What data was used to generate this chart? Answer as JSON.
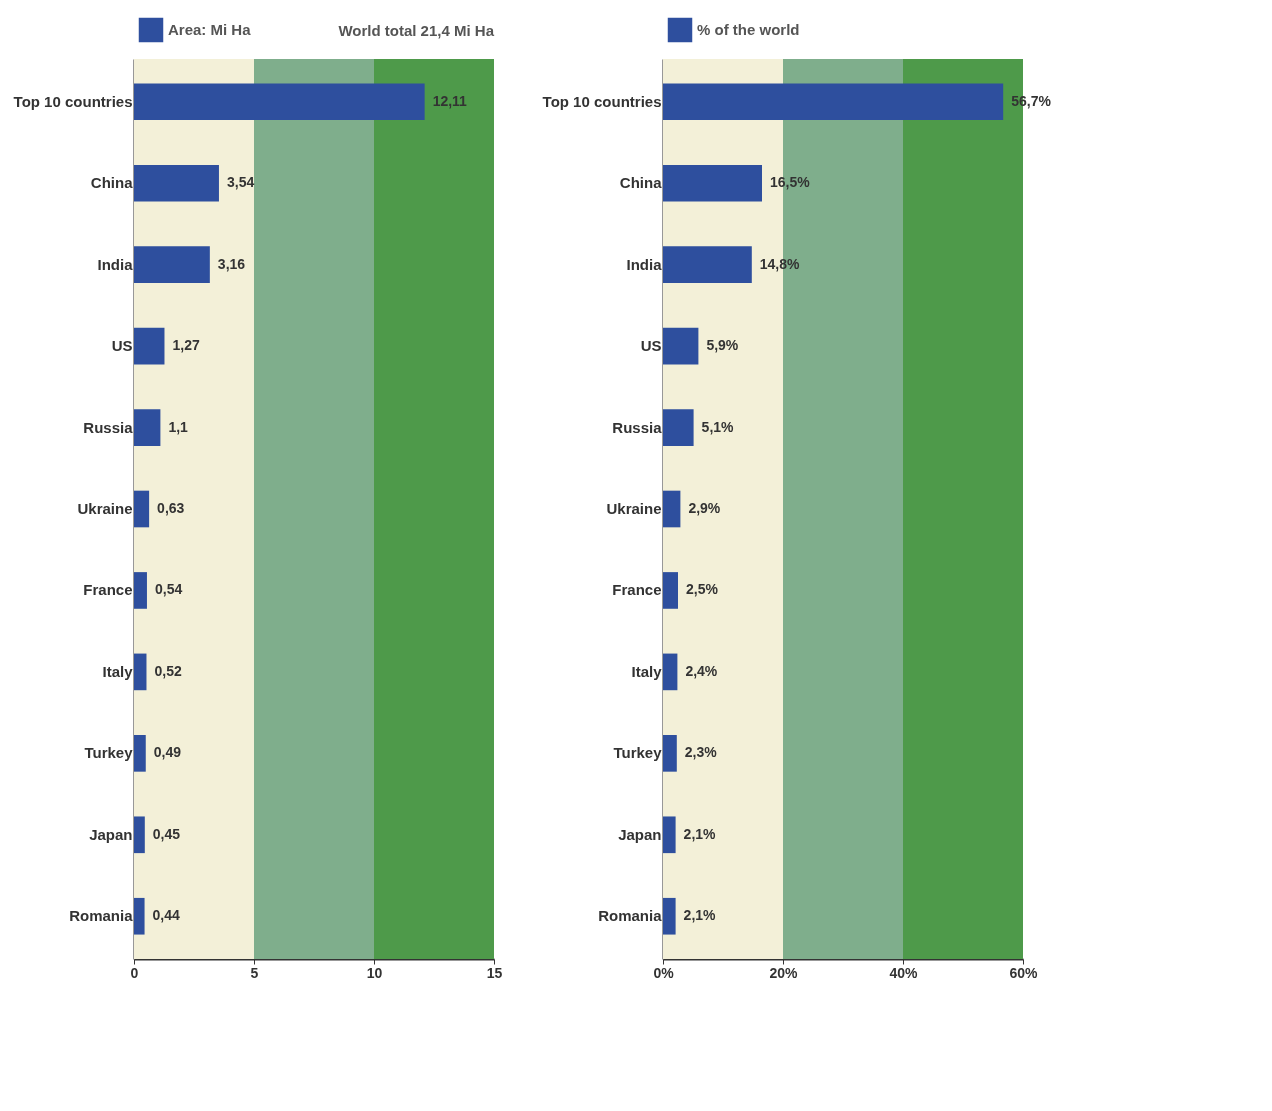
{
  "chart_data": [
    {
      "type": "bar",
      "orientation": "horizontal",
      "categories": [
        "Top 10 countries",
        "China",
        "India",
        "US",
        "Russia",
        "Ukraine",
        "France",
        "Italy",
        "Turkey",
        "Japan",
        "Romania"
      ],
      "series": [
        {
          "name": "Area: Mi Ha",
          "color": "#2e4f9e",
          "values": [
            12.11,
            3.54,
            3.16,
            1.27,
            1.1,
            0.63,
            0.54,
            0.52,
            0.49,
            0.45,
            0.44
          ],
          "value_labels": [
            "12,11",
            "3,54",
            "3,16",
            "1,27",
            "1,1",
            "0,63",
            "0,54",
            "0,52",
            "0,49",
            "0,45",
            "0,44"
          ]
        }
      ],
      "xlim": [
        0,
        15
      ],
      "xticks": [
        0,
        5,
        10,
        15
      ],
      "legend": "top left",
      "grid": false,
      "bands": [
        {
          "axis": "x",
          "from": 0,
          "to": 5,
          "color": "#f3f0d8"
        },
        {
          "axis": "x",
          "from": 5,
          "to": 10,
          "color": "#7fae8c"
        },
        {
          "axis": "x",
          "from": 10,
          "to": 15,
          "color": "#4e9a4a"
        }
      ],
      "annotations": [
        "World total 21,4 Mi Ha"
      ]
    },
    {
      "type": "bar",
      "orientation": "horizontal",
      "categories": [
        "Top 10 countries",
        "China",
        "India",
        "US",
        "Russia",
        "Ukraine",
        "France",
        "Italy",
        "Turkey",
        "Japan",
        "Romania"
      ],
      "series": [
        {
          "name": "% of the world",
          "color": "#2e4f9e",
          "values": [
            56.7,
            16.5,
            14.8,
            5.9,
            5.1,
            2.9,
            2.5,
            2.4,
            2.3,
            2.1,
            2.1
          ],
          "value_labels": [
            "56,7%",
            "16,5%",
            "14,8%",
            "5,9%",
            "5,1%",
            "2,9%",
            "2,5%",
            "2,4%",
            "2,3%",
            "2,1%",
            "2,1%"
          ]
        }
      ],
      "xlim": [
        0,
        60
      ],
      "xticks": [
        {
          "value": 0,
          "label": "0%"
        },
        {
          "value": 20,
          "label": "20%"
        },
        {
          "value": 40,
          "label": "40%"
        },
        {
          "value": 60,
          "label": "60%"
        }
      ],
      "legend": "top left",
      "grid": false,
      "bands": [
        {
          "axis": "x",
          "from": 0,
          "to": 20,
          "color": "#f3f0d8"
        },
        {
          "axis": "x",
          "from": 20,
          "to": 40,
          "color": "#7fae8c"
        },
        {
          "axis": "x",
          "from": 40,
          "to": 60,
          "color": "#4e9a4a"
        }
      ]
    }
  ]
}
